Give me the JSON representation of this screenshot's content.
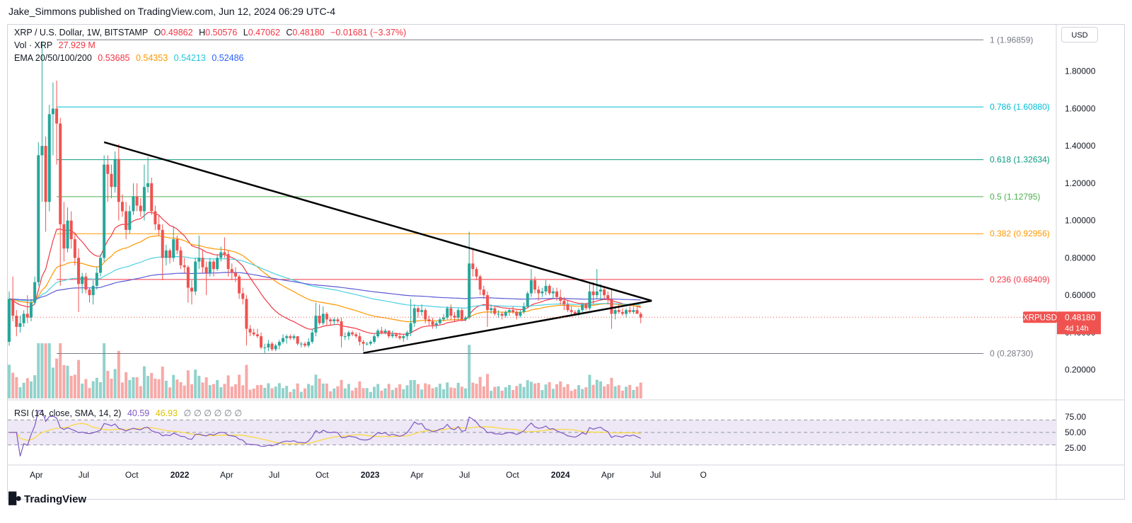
{
  "header": {
    "publisher": "Jake_Simmons published on TradingView.com, Jun 12, 2024 06:29 UTC-4"
  },
  "legend": {
    "symbol": "XRP / U.S. Dollar, 1W, BITSTAMP",
    "o_label": "O",
    "o_value": "0.49862",
    "h_label": "H",
    "h_value": "0.50576",
    "l_label": "L",
    "l_value": "0.47062",
    "c_label": "C",
    "c_value": "0.48180",
    "change": "−0.01681 (−3.37%)",
    "vol_label": "Vol · XRP",
    "vol_value": "27.929 M",
    "ema_label": "EMA 20/50/100/200",
    "ema_values": [
      "0.53685",
      "0.54353",
      "0.54213",
      "0.52486"
    ],
    "rsi_label": "RSI (14, close, SMA, 14, 2)",
    "rsi_value": "40.59",
    "rsi_sma": "46.93",
    "rsi_extra": "∅ ∅ ∅ ∅ ∅ ∅"
  },
  "currency_button": "USD",
  "price_tag": {
    "symbol": "XRPUSD",
    "price": "0.48180",
    "countdown": "4d 14h"
  },
  "branding": "TradingView",
  "colors": {
    "up": "#26a69a",
    "down": "#ef5350",
    "ema20": "#f23645",
    "ema50": "#ff9800",
    "ema100": "#4dd0e1",
    "ema200": "#5b5bd6",
    "rsi": "#7e57c2",
    "rsi_sma": "#fdd835",
    "rsi_band": "#ede7f6",
    "trendline": "#000000"
  },
  "chart_data": {
    "type": "candlestick",
    "interval": "1W",
    "x_ticks": [
      "Apr",
      "Jul",
      "Oct",
      "2022",
      "Apr",
      "Jul",
      "Oct",
      "2023",
      "Apr",
      "Jul",
      "Oct",
      "2024",
      "Apr",
      "Jul",
      "O"
    ],
    "y_ticks": [
      "1.80000",
      "1.60000",
      "1.40000",
      "1.20000",
      "1.00000",
      "0.80000",
      "0.60000",
      "0.40000",
      "0.20000"
    ],
    "y_tick_values": [
      1.8,
      1.6,
      1.4,
      1.2,
      1.0,
      0.8,
      0.6,
      0.4,
      0.2
    ],
    "ylim": [
      0.13,
      2.0
    ],
    "fibonacci": [
      {
        "label": "1 (1.96859)",
        "value": 1.96859,
        "color": "#787b86"
      },
      {
        "label": "0.786 (1.60880)",
        "value": 1.6088,
        "color": "#00bcd4"
      },
      {
        "label": "0.618 (1.32634)",
        "value": 1.32634,
        "color": "#089981"
      },
      {
        "label": "0.5 (1.12795)",
        "value": 1.12795,
        "color": "#4caf50"
      },
      {
        "label": "0.382 (0.92956)",
        "value": 0.92956,
        "color": "#ff9800"
      },
      {
        "label": "0.236 (0.68409)",
        "value": 0.68409,
        "color": "#f23645"
      },
      {
        "label": "0 (0.28730)",
        "value": 0.2873,
        "color": "#787b86"
      }
    ],
    "trendlines": [
      {
        "from": [
          "2021-08-09",
          1.42
        ],
        "to": [
          "2024-06-24",
          0.57
        ]
      },
      {
        "from": [
          "2022-12-19",
          0.29
        ],
        "to": [
          "2024-06-24",
          0.57
        ]
      }
    ],
    "last_price": 0.4818,
    "candles": [
      [
        "2021-02-08",
        0.35,
        0.62,
        0.33,
        0.58
      ],
      [
        "2021-02-15",
        0.58,
        0.7,
        0.46,
        0.49
      ],
      [
        "2021-02-22",
        0.49,
        0.52,
        0.38,
        0.43
      ],
      [
        "2021-03-01",
        0.43,
        0.49,
        0.4,
        0.45
      ],
      [
        "2021-03-08",
        0.45,
        0.52,
        0.43,
        0.5
      ],
      [
        "2021-03-15",
        0.5,
        0.6,
        0.45,
        0.48
      ],
      [
        "2021-03-22",
        0.48,
        0.58,
        0.46,
        0.56
      ],
      [
        "2021-03-29",
        0.56,
        0.7,
        0.55,
        0.67
      ],
      [
        "2021-04-05",
        0.67,
        1.42,
        0.65,
        1.35
      ],
      [
        "2021-04-12",
        1.35,
        1.96,
        1.1,
        1.4
      ],
      [
        "2021-04-19",
        1.4,
        1.45,
        0.94,
        1.1
      ],
      [
        "2021-04-26",
        1.1,
        1.62,
        1.05,
        1.57
      ],
      [
        "2021-05-03",
        1.57,
        1.74,
        1.35,
        1.6
      ],
      [
        "2021-05-10",
        1.6,
        1.75,
        1.3,
        1.52
      ],
      [
        "2021-05-17",
        1.52,
        1.55,
        0.65,
        0.98
      ],
      [
        "2021-05-24",
        0.98,
        1.1,
        0.78,
        0.85
      ],
      [
        "2021-05-31",
        0.85,
        1.07,
        0.83,
        1.0
      ],
      [
        "2021-06-07",
        1.0,
        1.05,
        0.85,
        0.9
      ],
      [
        "2021-06-14",
        0.9,
        0.93,
        0.76,
        0.8
      ],
      [
        "2021-06-21",
        0.8,
        0.85,
        0.51,
        0.66
      ],
      [
        "2021-06-28",
        0.66,
        0.72,
        0.61,
        0.7
      ],
      [
        "2021-07-05",
        0.7,
        0.72,
        0.61,
        0.63
      ],
      [
        "2021-07-12",
        0.63,
        0.64,
        0.56,
        0.6
      ],
      [
        "2021-07-19",
        0.6,
        0.68,
        0.55,
        0.65
      ],
      [
        "2021-07-26",
        0.65,
        0.75,
        0.63,
        0.72
      ],
      [
        "2021-08-02",
        0.72,
        0.82,
        0.7,
        0.8
      ],
      [
        "2021-08-09",
        0.8,
        1.35,
        0.78,
        1.3
      ],
      [
        "2021-08-16",
        1.3,
        1.35,
        1.1,
        1.25
      ],
      [
        "2021-08-23",
        1.25,
        1.3,
        1.12,
        1.18
      ],
      [
        "2021-08-30",
        1.18,
        1.37,
        1.15,
        1.33
      ],
      [
        "2021-09-06",
        1.33,
        1.41,
        1.0,
        1.1
      ],
      [
        "2021-09-13",
        1.1,
        1.14,
        1.02,
        1.05
      ],
      [
        "2021-09-20",
        1.05,
        1.1,
        0.9,
        0.95
      ],
      [
        "2021-09-27",
        0.95,
        1.08,
        0.93,
        1.05
      ],
      [
        "2021-10-04",
        1.05,
        1.2,
        1.03,
        1.13
      ],
      [
        "2021-10-11",
        1.13,
        1.2,
        1.05,
        1.08
      ],
      [
        "2021-10-18",
        1.08,
        1.12,
        1.02,
        1.05
      ],
      [
        "2021-10-25",
        1.05,
        1.3,
        1.0,
        1.18
      ],
      [
        "2021-11-01",
        1.18,
        1.34,
        1.15,
        1.2
      ],
      [
        "2021-11-08",
        1.2,
        1.23,
        1.03,
        1.05
      ],
      [
        "2021-11-15",
        1.05,
        1.08,
        0.95,
        0.98
      ],
      [
        "2021-11-22",
        0.98,
        1.03,
        0.92,
        0.95
      ],
      [
        "2021-11-29",
        0.95,
        0.98,
        0.68,
        0.8
      ],
      [
        "2021-12-06",
        0.8,
        0.87,
        0.76,
        0.84
      ],
      [
        "2021-12-13",
        0.84,
        0.85,
        0.77,
        0.8
      ],
      [
        "2021-12-20",
        0.8,
        0.97,
        0.78,
        0.9
      ],
      [
        "2021-12-27",
        0.9,
        0.92,
        0.82,
        0.84
      ],
      [
        "2022-01-03",
        0.84,
        0.86,
        0.74,
        0.76
      ],
      [
        "2022-01-10",
        0.76,
        0.8,
        0.72,
        0.75
      ],
      [
        "2022-01-17",
        0.75,
        0.76,
        0.56,
        0.64
      ],
      [
        "2022-01-24",
        0.64,
        0.68,
        0.55,
        0.62
      ],
      [
        "2022-01-31",
        0.62,
        0.8,
        0.6,
        0.78
      ],
      [
        "2022-02-07",
        0.78,
        0.92,
        0.74,
        0.8
      ],
      [
        "2022-02-14",
        0.8,
        0.84,
        0.72,
        0.75
      ],
      [
        "2022-02-21",
        0.75,
        0.78,
        0.6,
        0.72
      ],
      [
        "2022-02-28",
        0.72,
        0.8,
        0.7,
        0.78
      ],
      [
        "2022-03-07",
        0.78,
        0.79,
        0.7,
        0.74
      ],
      [
        "2022-03-14",
        0.74,
        0.82,
        0.73,
        0.8
      ],
      [
        "2022-03-21",
        0.8,
        0.86,
        0.78,
        0.83
      ],
      [
        "2022-03-28",
        0.83,
        0.91,
        0.8,
        0.82
      ],
      [
        "2022-04-04",
        0.82,
        0.84,
        0.7,
        0.74
      ],
      [
        "2022-04-11",
        0.74,
        0.77,
        0.68,
        0.72
      ],
      [
        "2022-04-18",
        0.72,
        0.75,
        0.67,
        0.7
      ],
      [
        "2022-04-25",
        0.7,
        0.71,
        0.58,
        0.61
      ],
      [
        "2022-05-02",
        0.61,
        0.64,
        0.55,
        0.58
      ],
      [
        "2022-05-09",
        0.58,
        0.6,
        0.33,
        0.42
      ],
      [
        "2022-05-16",
        0.42,
        0.44,
        0.38,
        0.4
      ],
      [
        "2022-05-23",
        0.4,
        0.42,
        0.38,
        0.39
      ],
      [
        "2022-05-30",
        0.39,
        0.42,
        0.37,
        0.38
      ],
      [
        "2022-06-06",
        0.38,
        0.4,
        0.31,
        0.32
      ],
      [
        "2022-06-13",
        0.32,
        0.34,
        0.29,
        0.32
      ],
      [
        "2022-06-20",
        0.32,
        0.36,
        0.3,
        0.34
      ],
      [
        "2022-06-27",
        0.34,
        0.35,
        0.3,
        0.31
      ],
      [
        "2022-07-04",
        0.31,
        0.34,
        0.3,
        0.33
      ],
      [
        "2022-07-11",
        0.33,
        0.36,
        0.31,
        0.35
      ],
      [
        "2022-07-18",
        0.35,
        0.39,
        0.34,
        0.37
      ],
      [
        "2022-07-25",
        0.37,
        0.39,
        0.34,
        0.38
      ],
      [
        "2022-08-01",
        0.38,
        0.39,
        0.36,
        0.37
      ],
      [
        "2022-08-08",
        0.37,
        0.39,
        0.36,
        0.38
      ],
      [
        "2022-08-15",
        0.38,
        0.38,
        0.33,
        0.34
      ],
      [
        "2022-08-22",
        0.34,
        0.35,
        0.32,
        0.34
      ],
      [
        "2022-08-29",
        0.34,
        0.35,
        0.32,
        0.33
      ],
      [
        "2022-09-05",
        0.33,
        0.37,
        0.32,
        0.35
      ],
      [
        "2022-09-12",
        0.35,
        0.42,
        0.34,
        0.4
      ],
      [
        "2022-09-19",
        0.4,
        0.56,
        0.38,
        0.49
      ],
      [
        "2022-09-26",
        0.49,
        0.55,
        0.44,
        0.45
      ],
      [
        "2022-10-03",
        0.45,
        0.54,
        0.44,
        0.5
      ],
      [
        "2022-10-10",
        0.5,
        0.51,
        0.44,
        0.47
      ],
      [
        "2022-10-17",
        0.47,
        0.48,
        0.44,
        0.46
      ],
      [
        "2022-10-24",
        0.46,
        0.48,
        0.44,
        0.47
      ],
      [
        "2022-10-31",
        0.47,
        0.48,
        0.45,
        0.46
      ],
      [
        "2022-11-07",
        0.46,
        0.48,
        0.32,
        0.38
      ],
      [
        "2022-11-14",
        0.38,
        0.4,
        0.36,
        0.38
      ],
      [
        "2022-11-21",
        0.38,
        0.41,
        0.36,
        0.4
      ],
      [
        "2022-11-28",
        0.4,
        0.41,
        0.38,
        0.39
      ],
      [
        "2022-12-05",
        0.39,
        0.4,
        0.37,
        0.38
      ],
      [
        "2022-12-12",
        0.38,
        0.4,
        0.33,
        0.35
      ],
      [
        "2022-12-19",
        0.35,
        0.36,
        0.3,
        0.34
      ],
      [
        "2022-12-26",
        0.34,
        0.35,
        0.33,
        0.34
      ],
      [
        "2023-01-02",
        0.34,
        0.36,
        0.33,
        0.35
      ],
      [
        "2023-01-09",
        0.35,
        0.39,
        0.34,
        0.38
      ],
      [
        "2023-01-16",
        0.38,
        0.42,
        0.37,
        0.41
      ],
      [
        "2023-01-23",
        0.41,
        0.43,
        0.39,
        0.4
      ],
      [
        "2023-01-30",
        0.4,
        0.42,
        0.39,
        0.41
      ],
      [
        "2023-02-06",
        0.41,
        0.41,
        0.37,
        0.38
      ],
      [
        "2023-02-13",
        0.38,
        0.41,
        0.37,
        0.39
      ],
      [
        "2023-02-20",
        0.39,
        0.4,
        0.37,
        0.38
      ],
      [
        "2023-02-27",
        0.38,
        0.4,
        0.36,
        0.37
      ],
      [
        "2023-03-06",
        0.37,
        0.39,
        0.35,
        0.38
      ],
      [
        "2023-03-13",
        0.38,
        0.41,
        0.36,
        0.4
      ],
      [
        "2023-03-20",
        0.4,
        0.58,
        0.38,
        0.45
      ],
      [
        "2023-03-27",
        0.45,
        0.55,
        0.43,
        0.53
      ],
      [
        "2023-04-03",
        0.53,
        0.54,
        0.48,
        0.51
      ],
      [
        "2023-04-10",
        0.51,
        0.55,
        0.49,
        0.52
      ],
      [
        "2023-04-17",
        0.52,
        0.53,
        0.45,
        0.47
      ],
      [
        "2023-04-24",
        0.47,
        0.49,
        0.44,
        0.46
      ],
      [
        "2023-05-01",
        0.46,
        0.48,
        0.42,
        0.44
      ],
      [
        "2023-05-08",
        0.44,
        0.46,
        0.42,
        0.45
      ],
      [
        "2023-05-15",
        0.45,
        0.48,
        0.44,
        0.47
      ],
      [
        "2023-05-22",
        0.47,
        0.5,
        0.46,
        0.48
      ],
      [
        "2023-05-29",
        0.48,
        0.54,
        0.47,
        0.53
      ],
      [
        "2023-06-05",
        0.53,
        0.55,
        0.47,
        0.49
      ],
      [
        "2023-06-12",
        0.49,
        0.51,
        0.46,
        0.48
      ],
      [
        "2023-06-19",
        0.48,
        0.53,
        0.47,
        0.52
      ],
      [
        "2023-06-26",
        0.52,
        0.53,
        0.46,
        0.47
      ],
      [
        "2023-07-03",
        0.47,
        0.49,
        0.46,
        0.48
      ],
      [
        "2023-07-10",
        0.48,
        0.94,
        0.47,
        0.77
      ],
      [
        "2023-07-17",
        0.77,
        0.85,
        0.7,
        0.74
      ],
      [
        "2023-07-24",
        0.74,
        0.75,
        0.68,
        0.7
      ],
      [
        "2023-07-31",
        0.7,
        0.71,
        0.6,
        0.63
      ],
      [
        "2023-08-07",
        0.63,
        0.65,
        0.58,
        0.6
      ],
      [
        "2023-08-14",
        0.6,
        0.62,
        0.43,
        0.52
      ],
      [
        "2023-08-21",
        0.52,
        0.55,
        0.5,
        0.53
      ],
      [
        "2023-08-28",
        0.53,
        0.54,
        0.49,
        0.5
      ],
      [
        "2023-09-04",
        0.5,
        0.52,
        0.48,
        0.5
      ],
      [
        "2023-09-11",
        0.5,
        0.51,
        0.47,
        0.49
      ],
      [
        "2023-09-18",
        0.49,
        0.52,
        0.48,
        0.51
      ],
      [
        "2023-09-25",
        0.51,
        0.53,
        0.49,
        0.52
      ],
      [
        "2023-10-02",
        0.52,
        0.54,
        0.5,
        0.51
      ],
      [
        "2023-10-09",
        0.51,
        0.52,
        0.47,
        0.49
      ],
      [
        "2023-10-16",
        0.49,
        0.52,
        0.48,
        0.51
      ],
      [
        "2023-10-23",
        0.51,
        0.56,
        0.5,
        0.54
      ],
      [
        "2023-10-30",
        0.54,
        0.62,
        0.53,
        0.61
      ],
      [
        "2023-11-06",
        0.61,
        0.74,
        0.59,
        0.68
      ],
      [
        "2023-11-13",
        0.68,
        0.7,
        0.61,
        0.63
      ],
      [
        "2023-11-20",
        0.63,
        0.65,
        0.57,
        0.61
      ],
      [
        "2023-11-27",
        0.61,
        0.64,
        0.59,
        0.62
      ],
      [
        "2023-12-04",
        0.62,
        0.68,
        0.6,
        0.65
      ],
      [
        "2023-12-11",
        0.65,
        0.66,
        0.6,
        0.61
      ],
      [
        "2023-12-18",
        0.61,
        0.64,
        0.58,
        0.62
      ],
      [
        "2023-12-25",
        0.62,
        0.64,
        0.57,
        0.59
      ],
      [
        "2024-01-01",
        0.59,
        0.63,
        0.55,
        0.57
      ],
      [
        "2024-01-08",
        0.57,
        0.59,
        0.52,
        0.55
      ],
      [
        "2024-01-15",
        0.55,
        0.57,
        0.51,
        0.52
      ],
      [
        "2024-01-22",
        0.52,
        0.54,
        0.49,
        0.51
      ],
      [
        "2024-01-29",
        0.51,
        0.52,
        0.49,
        0.5
      ],
      [
        "2024-02-05",
        0.5,
        0.53,
        0.49,
        0.52
      ],
      [
        "2024-02-12",
        0.52,
        0.56,
        0.51,
        0.55
      ],
      [
        "2024-02-19",
        0.55,
        0.56,
        0.52,
        0.53
      ],
      [
        "2024-02-26",
        0.53,
        0.66,
        0.52,
        0.62
      ],
      [
        "2024-03-04",
        0.62,
        0.67,
        0.55,
        0.6
      ],
      [
        "2024-03-11",
        0.6,
        0.74,
        0.58,
        0.62
      ],
      [
        "2024-03-18",
        0.62,
        0.66,
        0.57,
        0.63
      ],
      [
        "2024-03-25",
        0.63,
        0.65,
        0.58,
        0.6
      ],
      [
        "2024-04-01",
        0.6,
        0.62,
        0.55,
        0.58
      ],
      [
        "2024-04-08",
        0.58,
        0.63,
        0.42,
        0.5
      ],
      [
        "2024-04-15",
        0.5,
        0.54,
        0.47,
        0.52
      ],
      [
        "2024-04-22",
        0.52,
        0.55,
        0.5,
        0.51
      ],
      [
        "2024-04-29",
        0.51,
        0.53,
        0.49,
        0.5
      ],
      [
        "2024-05-06",
        0.5,
        0.53,
        0.48,
        0.52
      ],
      [
        "2024-05-13",
        0.52,
        0.54,
        0.5,
        0.51
      ],
      [
        "2024-05-20",
        0.51,
        0.54,
        0.5,
        0.52
      ],
      [
        "2024-05-27",
        0.52,
        0.54,
        0.5,
        0.5
      ],
      [
        "2024-06-03",
        0.5,
        0.51,
        0.45,
        0.48
      ]
    ],
    "rsi": {
      "ylim": [
        0,
        100
      ],
      "y_ticks": [
        "75.00",
        "50.00",
        "25.00"
      ],
      "y_tick_values": [
        75,
        50,
        25
      ],
      "bands": [
        70,
        50,
        30
      ]
    }
  }
}
